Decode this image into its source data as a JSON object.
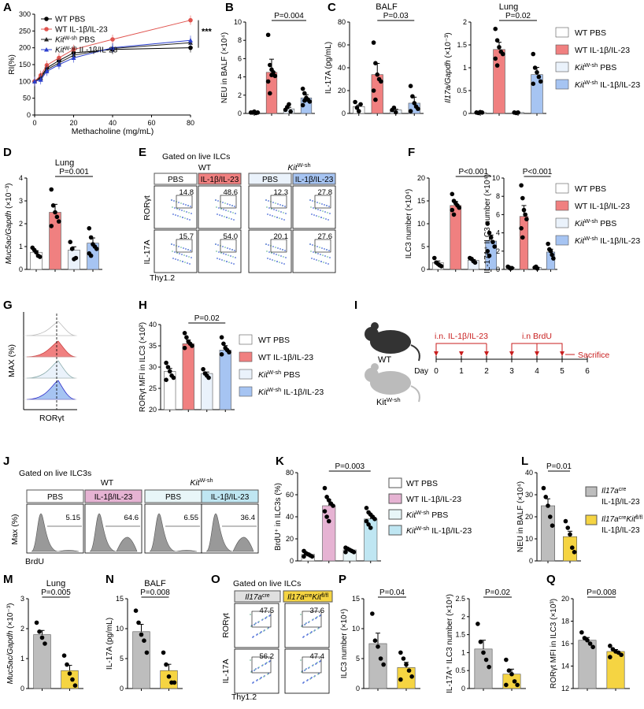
{
  "colors": {
    "wt_pbs": "#ffffff",
    "wt_il": "#f08080",
    "kit_pbs": "#eaf2fb",
    "kit_il": "#a6c4f2",
    "pink": "#e6b3d3",
    "cyan": "#bfe6f2",
    "grey": "#bdbdbd",
    "yellow": "#f5d442",
    "red": "#e0544f",
    "blue": "#2b3fcf"
  },
  "panels": [
    {
      "id": "A",
      "label": "A"
    },
    {
      "id": "B",
      "label": "B"
    },
    {
      "id": "C",
      "label": "C"
    },
    {
      "id": "D",
      "label": "D"
    },
    {
      "id": "E",
      "label": "E"
    },
    {
      "id": "F",
      "label": "F"
    },
    {
      "id": "G",
      "label": "G"
    },
    {
      "id": "H",
      "label": "H"
    },
    {
      "id": "I",
      "label": "I"
    },
    {
      "id": "J",
      "label": "J"
    },
    {
      "id": "K",
      "label": "K"
    },
    {
      "id": "L",
      "label": "L"
    },
    {
      "id": "M",
      "label": "M"
    },
    {
      "id": "N",
      "label": "N"
    },
    {
      "id": "O",
      "label": "O"
    },
    {
      "id": "P",
      "label": "P"
    },
    {
      "id": "Q",
      "label": "Q"
    }
  ],
  "legend4": [
    "WT PBS",
    "WT IL-1β/IL-23",
    "KitW-sh PBS",
    "KitW-sh IL-1β/IL-23"
  ],
  "legend_kit_main": "Kit",
  "legend_kit_sup": "W-sh",
  "legend_il_suffix": " IL-1β/IL-23",
  "legend_pbs_suffix": " PBS",
  "legend_wt_pbs": "WT PBS",
  "legend_wt_il": "WT IL-1β/IL-23",
  "chart_data": [
    {
      "panel": "A",
      "type": "line",
      "xlabel": "Methacholine (mg/mL)",
      "ylabel": "RI(%)",
      "xlim": [
        0,
        80
      ],
      "ylim": [
        0,
        300
      ],
      "xticks": [
        0,
        20,
        40,
        60,
        80
      ],
      "yticks": [
        0,
        50,
        100,
        150,
        200,
        250,
        300
      ],
      "significance": "***",
      "x": [
        0,
        3.125,
        6.25,
        12.5,
        20,
        40,
        80
      ],
      "series": [
        {
          "name": "WT PBS",
          "values": [
            100,
            113,
            140,
            162,
            185,
            195,
            200
          ]
        },
        {
          "name": "WT IL-1β/IL-23",
          "values": [
            100,
            118,
            148,
            170,
            195,
            225,
            282
          ]
        },
        {
          "name": "KitW-sh PBS",
          "values": [
            100,
            110,
            135,
            155,
            178,
            198,
            215
          ]
        },
        {
          "name": "KitW-sh IL-1β/IL-23",
          "values": [
            100,
            105,
            130,
            150,
            170,
            200,
            222
          ]
        }
      ]
    },
    {
      "panel": "B",
      "type": "bar",
      "ylabel": "NEU in BALF (×10⁴)",
      "ylim": [
        0,
        10
      ],
      "yticks": [
        0,
        2,
        4,
        6,
        8,
        10
      ],
      "pvalue": "P=0.004",
      "values": [
        0.1,
        4.5,
        0.5,
        1.7
      ],
      "points": [
        [
          0.1,
          0.1,
          0.2,
          0.05,
          0.1
        ],
        [
          8.6,
          5.3,
          4.8,
          4.5,
          4.1,
          3.5,
          2.2,
          4.2
        ],
        [
          0.4,
          0.7,
          1.0,
          0.2
        ],
        [
          2.7,
          2.2,
          1.7,
          1.5,
          1.3,
          0.9,
          1.4
        ]
      ]
    },
    {
      "panel": "C1",
      "type": "bar",
      "title": "BALF",
      "ylabel": "IL-17A (pg/mL)",
      "ylim": [
        0,
        80
      ],
      "yticks": [
        0,
        20,
        40,
        60,
        80
      ],
      "pvalue": "P=0.03",
      "values": [
        6,
        34,
        3,
        9
      ],
      "points": [
        [
          10,
          5,
          2,
          8
        ],
        [
          62,
          44,
          34,
          30,
          28,
          20,
          12
        ],
        [
          3,
          5,
          1
        ],
        [
          24,
          15,
          9,
          6,
          4,
          2
        ]
      ]
    },
    {
      "panel": "C2",
      "type": "bar",
      "title": "Lung",
      "ylabel": "Il17a/Gapdh (×10⁻³)",
      "ylim": [
        0,
        2
      ],
      "yticks": [
        0,
        0.5,
        1.0,
        1.5,
        2.0
      ],
      "pvalue": "P=0.02",
      "values": [
        0.02,
        1.4,
        0.02,
        0.85
      ],
      "points": [
        [
          0.02,
          0.01,
          0.03,
          0.02
        ],
        [
          1.85,
          1.6,
          1.45,
          1.35,
          1.3,
          1.2,
          1.05
        ],
        [
          0.02,
          0.01,
          0.02
        ],
        [
          1.3,
          1.0,
          0.9,
          0.8,
          0.7,
          0.65
        ]
      ]
    },
    {
      "panel": "D",
      "type": "bar",
      "title": "Lung",
      "ylabel": "Muc5ac/Gapdh (×10⁻³)",
      "ylim": [
        0,
        4
      ],
      "yticks": [
        0,
        1,
        2,
        3,
        4
      ],
      "pvalue": "P=0.001",
      "values": [
        0.75,
        2.5,
        0.85,
        1.15
      ],
      "points": [
        [
          0.95,
          0.85,
          0.75,
          0.6,
          0.55
        ],
        [
          3.5,
          2.8,
          2.5,
          2.3,
          2.1,
          1.9
        ],
        [
          1.2,
          0.9,
          0.45,
          0.5
        ],
        [
          1.8,
          1.4,
          1.1,
          1.0,
          0.9,
          0.7,
          0.6
        ]
      ]
    },
    {
      "panel": "F1",
      "type": "bar",
      "ylabel": "ILC3 number (×10⁴)",
      "ylim": [
        0,
        20
      ],
      "yticks": [
        0,
        5,
        10,
        15,
        20
      ],
      "pvalue": "P<0.001",
      "values": [
        1.5,
        14,
        2,
        6.2
      ],
      "points": [
        [
          2.5,
          1.5,
          1.2,
          0.9,
          0.7
        ],
        [
          16.5,
          15,
          14.5,
          14,
          13.5,
          13,
          12
        ],
        [
          2.5,
          2.3,
          1.8,
          1.5
        ],
        [
          10,
          8,
          7,
          6,
          5,
          4,
          3
        ]
      ]
    },
    {
      "panel": "F2",
      "type": "bar",
      "ylabel": "IL-17A⁺ ILC3 number (×10⁴)",
      "ylim": [
        0,
        10
      ],
      "yticks": [
        0,
        2,
        4,
        6,
        8,
        10
      ],
      "pvalue": "P<0.001",
      "values": [
        0.2,
        5.8,
        0.2,
        1.9
      ],
      "points": [
        [
          0.3,
          0.2,
          0.1,
          0.15
        ],
        [
          9.2,
          7.8,
          6.5,
          6.0,
          5.5,
          4.5,
          3.5
        ],
        [
          0.2,
          0.3,
          0.1
        ],
        [
          2.8,
          2.2,
          2.0,
          1.6,
          1.2
        ]
      ]
    },
    {
      "panel": "H",
      "type": "bar",
      "ylabel": "RORγt MFI in ILC3 (×10²)",
      "ylim": [
        20,
        40
      ],
      "yticks": [
        20,
        25,
        30,
        35,
        40
      ],
      "pvalue": "P=0.02",
      "values": [
        29,
        35.5,
        28.5,
        34
      ],
      "points": [
        [
          31,
          30,
          29,
          28,
          27.5,
          27
        ],
        [
          38,
          37,
          36,
          35.5,
          35,
          34.5
        ],
        [
          29.5,
          28.5,
          28,
          27.5
        ],
        [
          37,
          35.5,
          34.5,
          34,
          33.5,
          33
        ]
      ]
    },
    {
      "panel": "K",
      "type": "bar",
      "ylabel": "BrdU⁺ in ILC3s (%)",
      "ylim": [
        0,
        80
      ],
      "yticks": [
        0,
        20,
        40,
        60,
        80
      ],
      "pvalue": "P=0.003",
      "values": [
        6,
        50,
        10,
        38
      ],
      "points": [
        [
          9,
          7,
          6,
          5,
          4,
          4
        ],
        [
          66,
          58,
          55,
          52,
          50,
          45,
          40,
          36
        ],
        [
          12,
          11,
          10,
          9,
          8,
          8
        ],
        [
          48,
          44,
          42,
          40,
          38,
          36,
          33,
          30
        ]
      ]
    },
    {
      "panel": "L",
      "type": "bar",
      "ylabel": "NEU in BALF (×10⁴)",
      "ylim": [
        0,
        40
      ],
      "yticks": [
        0,
        10,
        20,
        30,
        40
      ],
      "pvalue": "P=0.01",
      "values": [
        25,
        11
      ],
      "points": [
        [
          33,
          29,
          25,
          20,
          16
        ],
        [
          18,
          15,
          12,
          6,
          4
        ]
      ]
    },
    {
      "panel": "M",
      "type": "bar",
      "title": "Lung",
      "ylabel": "Muc5ac/Gapdh (×10⁻³)",
      "ylim": [
        0,
        3
      ],
      "yticks": [
        0,
        1,
        2,
        3
      ],
      "pvalue": "P=0.005",
      "values": [
        1.8,
        0.6
      ],
      "points": [
        [
          2.2,
          1.9,
          1.7,
          1.5
        ],
        [
          1.1,
          0.8,
          0.5,
          0.3,
          0.1
        ]
      ]
    },
    {
      "panel": "N",
      "type": "bar",
      "title": "BALF",
      "ylabel": "IL-17A (pg/mL)",
      "ylim": [
        0,
        15
      ],
      "yticks": [
        0,
        5,
        10,
        15
      ],
      "pvalue": "P=0.008",
      "values": [
        9.5,
        3
      ],
      "points": [
        [
          13,
          11,
          9,
          8,
          6
        ],
        [
          6,
          4,
          2,
          1,
          1
        ]
      ]
    },
    {
      "panel": "P1",
      "type": "bar",
      "ylabel": "ILC3 number (×10⁴)",
      "ylim": [
        0,
        15
      ],
      "yticks": [
        0,
        5,
        10,
        15
      ],
      "pvalue": "P=0.04",
      "values": [
        7.5,
        3.5
      ],
      "points": [
        [
          12.5,
          8,
          7,
          5,
          4
        ],
        [
          6,
          5,
          4,
          3,
          2,
          1.5
        ]
      ]
    },
    {
      "panel": "P2",
      "type": "bar",
      "ylabel": "IL-17A⁺ ILC3 number (×10⁴)",
      "ylim": [
        0,
        2.5
      ],
      "yticks": [
        0,
        0.5,
        1.0,
        1.5,
        2.0,
        2.5
      ],
      "pvalue": "P=0.02",
      "values": [
        1.1,
        0.4
      ],
      "points": [
        [
          1.8,
          1.3,
          1.0,
          0.8,
          0.6
        ],
        [
          0.8,
          0.5,
          0.4,
          0.2,
          0.1,
          0.1
        ]
      ]
    },
    {
      "panel": "Q",
      "type": "bar",
      "ylabel": "RORγt MFI in ILC3 (×10³)",
      "ylim": [
        12,
        20
      ],
      "yticks": [
        12,
        14,
        16,
        18,
        20
      ],
      "pvalue": "P=0.008",
      "values": [
        16.3,
        15.3
      ],
      "points": [
        [
          17,
          16.5,
          16.3,
          16,
          15.7
        ],
        [
          15.8,
          15.5,
          15.3,
          15.2,
          15,
          14.8
        ]
      ]
    }
  ],
  "E": {
    "gate": "Gated on live ILCs",
    "wt": "WT",
    "kit": "Kit",
    "kit_sup": "W-sh",
    "pbs": "PBS",
    "il": "IL-1β/IL-23",
    "rows": [
      {
        "label": "RORγt",
        "values": [
          "14.8",
          "48.6",
          "12.3",
          "27.8"
        ]
      },
      {
        "label": "IL-17A",
        "values": [
          "15.7",
          "54.0",
          "20.1",
          "27.6"
        ]
      }
    ],
    "xlabel": "Thy1.2"
  },
  "G": {
    "ylabel": "MAX (%)",
    "xlabel": "RORγt"
  },
  "I": {
    "wt": "WT",
    "kit": "Kit",
    "kit_sup": "W-sh",
    "treat1": "i.n. IL-1β/IL-23",
    "treat2": "i.n BrdU",
    "sacrifice": "Sacrifice",
    "day": "Day",
    "days": [
      "0",
      "1",
      "2",
      "3",
      "4",
      "5",
      "6"
    ]
  },
  "J": {
    "gate": "Gated on live ILC3s",
    "wt": "WT",
    "kit": "Kit",
    "kit_sup": "W-sh",
    "pbs": "PBS",
    "il": "IL-1β/IL-23",
    "values": [
      "5.15",
      "64.6",
      "6.55",
      "36.4"
    ],
    "ylabel": "Max (%)",
    "xlabel": "BrdU"
  },
  "L_legend": [
    {
      "main": "Il17a",
      "sup": "cre",
      "line2": "IL-1β/IL-23"
    },
    {
      "main": "Il17a",
      "sup": "cre",
      "main2": "Kit",
      "sup2": "fl/fl",
      "line2": "IL-1β/IL-23"
    }
  ],
  "O": {
    "gate": "Gated on live ILCs",
    "col1": "Il17a",
    "col1_sup": "cre",
    "col2a": "Il17a",
    "col2a_sup": "cre",
    "col2b": "Kit",
    "col2b_sup": "fl/fl",
    "rows": [
      {
        "label": "RORγt",
        "values": [
          "47.5",
          "37.6"
        ]
      },
      {
        "label": "IL-17A",
        "values": [
          "56.2",
          "47.4"
        ]
      }
    ],
    "xlabel": "Thy1.2"
  }
}
